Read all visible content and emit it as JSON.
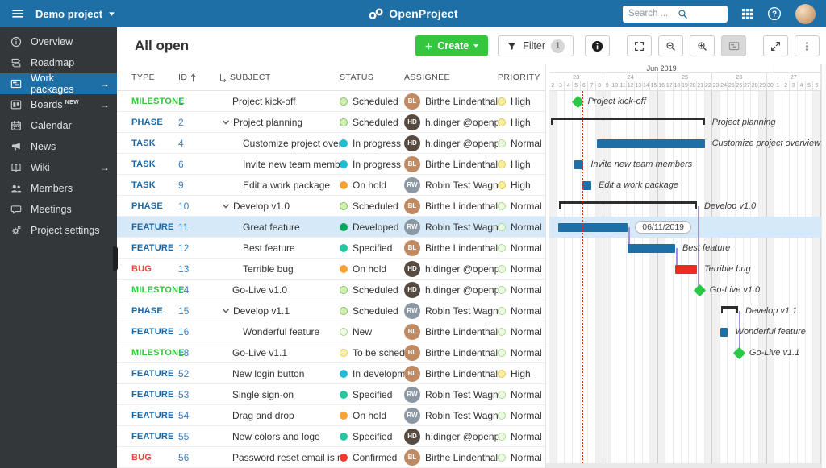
{
  "topbar": {
    "project_name": "Demo project",
    "logo_text": "OpenProject",
    "search_placeholder": "Search ..."
  },
  "sidebar": {
    "items": [
      {
        "icon": "overview-icon",
        "label": "Overview",
        "arrow": false,
        "badge": "",
        "active": false
      },
      {
        "icon": "roadmap-icon",
        "label": "Roadmap",
        "arrow": false,
        "badge": "",
        "active": false
      },
      {
        "icon": "work-packages-icon",
        "label": "Work packages",
        "arrow": true,
        "badge": "",
        "active": true
      },
      {
        "icon": "boards-icon",
        "label": "Boards",
        "arrow": true,
        "badge": "NEW",
        "active": false
      },
      {
        "icon": "calendar-icon",
        "label": "Calendar",
        "arrow": false,
        "badge": "",
        "active": false
      },
      {
        "icon": "news-icon",
        "label": "News",
        "arrow": false,
        "badge": "",
        "active": false
      },
      {
        "icon": "wiki-icon",
        "label": "Wiki",
        "arrow": true,
        "badge": "",
        "active": false
      },
      {
        "icon": "members-icon",
        "label": "Members",
        "arrow": false,
        "badge": "",
        "active": false
      },
      {
        "icon": "meetings-icon",
        "label": "Meetings",
        "arrow": false,
        "badge": "",
        "active": false
      },
      {
        "icon": "settings-icon",
        "label": "Project settings",
        "arrow": false,
        "badge": "",
        "active": false
      }
    ]
  },
  "toolbar": {
    "title": "All open",
    "create_label": "Create",
    "filter_label": "Filter",
    "filter_count": "1"
  },
  "table": {
    "columns": [
      "TYPE",
      "ID",
      "SUBJECT",
      "STATUS",
      "ASSIGNEE",
      "PRIORITY"
    ],
    "sort_column": "ID"
  },
  "people": {
    "bl": {
      "name": "Birthe Lindenthal",
      "initials": "BL",
      "color": "#C08A62"
    },
    "hd": {
      "name": "h.dinger @openproje...",
      "initials": "HD",
      "color": "#574A40"
    },
    "rw": {
      "name": "Robin Test Wagner",
      "initials": "RW",
      "color": "#8C99A5"
    }
  },
  "rows": [
    {
      "type": "MILESTONE",
      "cat": "milestone",
      "id": "1",
      "subject": "Project kick-off",
      "indent": 1,
      "expander": false,
      "status": {
        "label": "Scheduled",
        "dot": "scheduled"
      },
      "assignee": "bl",
      "priority": {
        "label": "High",
        "dot": "high"
      },
      "selected": false,
      "bar": {
        "kind": "diamond",
        "start": 3.7,
        "end": 3.7,
        "label": "Project kick-off",
        "pill": ""
      }
    },
    {
      "type": "PHASE",
      "cat": "phase",
      "id": "2",
      "subject": "Project planning",
      "indent": 0,
      "expander": true,
      "status": {
        "label": "Scheduled",
        "dot": "scheduled"
      },
      "assignee": "hd",
      "priority": {
        "label": "High",
        "dot": "high"
      },
      "selected": false,
      "bar": {
        "kind": "bracket",
        "start": 0.2,
        "end": 20.0,
        "label": "Project planning",
        "pill": ""
      }
    },
    {
      "type": "TASK",
      "cat": "task",
      "id": "4",
      "subject": "Customize project overvie...",
      "indent": 2,
      "expander": false,
      "status": {
        "label": "In progress",
        "dot": "inprogress"
      },
      "assignee": "hd",
      "priority": {
        "label": "Normal",
        "dot": "normal"
      },
      "selected": false,
      "bar": {
        "kind": "bar",
        "start": 6.1,
        "end": 20.0,
        "label": "Customize project overview page",
        "pill": ""
      }
    },
    {
      "type": "TASK",
      "cat": "task",
      "id": "6",
      "subject": "Invite new team members",
      "indent": 2,
      "expander": false,
      "status": {
        "label": "In progress",
        "dot": "inprogress"
      },
      "assignee": "bl",
      "priority": {
        "label": "High",
        "dot": "high"
      },
      "selected": false,
      "bar": {
        "kind": "bar",
        "start": 3.2,
        "end": 4.4,
        "label": "Invite new team members",
        "pill": ""
      }
    },
    {
      "type": "TASK",
      "cat": "task",
      "id": "9",
      "subject": "Edit a work package",
      "indent": 2,
      "expander": false,
      "status": {
        "label": "On hold",
        "dot": "onhold"
      },
      "assignee": "rw",
      "priority": {
        "label": "High",
        "dot": "high"
      },
      "selected": false,
      "bar": {
        "kind": "bar",
        "start": 4.3,
        "end": 5.4,
        "label": "Edit a work package",
        "pill": ""
      }
    },
    {
      "type": "PHASE",
      "cat": "phase",
      "id": "10",
      "subject": "Develop v1.0",
      "indent": 0,
      "expander": true,
      "status": {
        "label": "Scheduled",
        "dot": "scheduled"
      },
      "assignee": "bl",
      "priority": {
        "label": "Normal",
        "dot": "normal"
      },
      "selected": false,
      "bar": {
        "kind": "bracket",
        "start": 1.2,
        "end": 19.0,
        "label": "Develop v1.0",
        "pill": ""
      }
    },
    {
      "type": "FEATURE",
      "cat": "feature",
      "id": "11",
      "subject": "Great feature",
      "indent": 2,
      "expander": false,
      "status": {
        "label": "Developed",
        "dot": "developed"
      },
      "assignee": "rw",
      "priority": {
        "label": "Normal",
        "dot": "normal"
      },
      "selected": true,
      "bar": {
        "kind": "bar",
        "start": 1.1,
        "end": 10.1,
        "label": "",
        "pill": "06/11/2019"
      }
    },
    {
      "type": "FEATURE",
      "cat": "feature",
      "id": "12",
      "subject": "Best feature",
      "indent": 2,
      "expander": false,
      "status": {
        "label": "Specified",
        "dot": "specified"
      },
      "assignee": "bl",
      "priority": {
        "label": "Normal",
        "dot": "normal"
      },
      "selected": false,
      "bar": {
        "kind": "bar",
        "start": 10.1,
        "end": 16.2,
        "label": "Best feature",
        "pill": ""
      }
    },
    {
      "type": "BUG",
      "cat": "bug",
      "id": "13",
      "subject": "Terrible bug",
      "indent": 2,
      "expander": false,
      "status": {
        "label": "On hold",
        "dot": "onhold"
      },
      "assignee": "hd",
      "priority": {
        "label": "Normal",
        "dot": "normal"
      },
      "selected": false,
      "bar": {
        "kind": "bar-red",
        "start": 16.2,
        "end": 19.0,
        "label": "Terrible bug",
        "pill": ""
      }
    },
    {
      "type": "MILESTONE",
      "cat": "milestone",
      "id": "14",
      "subject": "Go-Live v1.0",
      "indent": 1,
      "expander": false,
      "status": {
        "label": "Scheduled",
        "dot": "scheduled"
      },
      "assignee": "hd",
      "priority": {
        "label": "Normal",
        "dot": "normal"
      },
      "selected": false,
      "bar": {
        "kind": "diamond",
        "start": 19.4,
        "end": 19.4,
        "label": "Go-Live v1.0",
        "pill": ""
      }
    },
    {
      "type": "PHASE",
      "cat": "phase",
      "id": "15",
      "subject": "Develop v1.1",
      "indent": 0,
      "expander": true,
      "status": {
        "label": "Scheduled",
        "dot": "scheduled"
      },
      "assignee": "rw",
      "priority": {
        "label": "Normal",
        "dot": "normal"
      },
      "selected": false,
      "bar": {
        "kind": "bracket",
        "start": 22.1,
        "end": 24.3,
        "label": "Develop v1.1",
        "pill": ""
      }
    },
    {
      "type": "FEATURE",
      "cat": "feature",
      "id": "16",
      "subject": "Wonderful feature",
      "indent": 2,
      "expander": false,
      "status": {
        "label": "New",
        "dot": "new"
      },
      "assignee": "bl",
      "priority": {
        "label": "Normal",
        "dot": "normal"
      },
      "selected": false,
      "bar": {
        "kind": "bar",
        "start": 22.0,
        "end": 23.0,
        "label": "Wonderful feature",
        "pill": ""
      }
    },
    {
      "type": "MILESTONE",
      "cat": "milestone",
      "id": "18",
      "subject": "Go-Live v1.1",
      "indent": 1,
      "expander": false,
      "status": {
        "label": "To be scheduled",
        "dot": "tobescheduled"
      },
      "assignee": "bl",
      "priority": {
        "label": "Normal",
        "dot": "normal"
      },
      "selected": false,
      "bar": {
        "kind": "diamond",
        "start": 24.5,
        "end": 24.5,
        "label": "Go-Live v1.1",
        "pill": ""
      }
    },
    {
      "type": "FEATURE",
      "cat": "feature",
      "id": "52",
      "subject": "New login button",
      "indent": 1,
      "expander": false,
      "status": {
        "label": "In development",
        "dot": "indevelopment"
      },
      "assignee": "bl",
      "priority": {
        "label": "High",
        "dot": "high"
      },
      "selected": false,
      "bar": null
    },
    {
      "type": "FEATURE",
      "cat": "feature",
      "id": "53",
      "subject": "Single sign-on",
      "indent": 1,
      "expander": false,
      "status": {
        "label": "Specified",
        "dot": "specified"
      },
      "assignee": "rw",
      "priority": {
        "label": "Normal",
        "dot": "normal"
      },
      "selected": false,
      "bar": null
    },
    {
      "type": "FEATURE",
      "cat": "feature",
      "id": "54",
      "subject": "Drag and drop",
      "indent": 1,
      "expander": false,
      "status": {
        "label": "On hold",
        "dot": "onhold"
      },
      "assignee": "rw",
      "priority": {
        "label": "Normal",
        "dot": "normal"
      },
      "selected": false,
      "bar": null
    },
    {
      "type": "FEATURE",
      "cat": "feature",
      "id": "55",
      "subject": "New colors and logo",
      "indent": 1,
      "expander": false,
      "status": {
        "label": "Specified",
        "dot": "specified"
      },
      "assignee": "hd",
      "priority": {
        "label": "Normal",
        "dot": "normal"
      },
      "selected": false,
      "bar": null
    },
    {
      "type": "BUG",
      "cat": "bug",
      "id": "56",
      "subject": "Password reset email is not se...",
      "indent": 1,
      "expander": false,
      "status": {
        "label": "Confirmed",
        "dot": "confirmed"
      },
      "assignee": "bl",
      "priority": {
        "label": "Normal",
        "dot": "normal"
      },
      "selected": false,
      "bar": null
    }
  ],
  "gantt": {
    "month_label": "Jun 2019",
    "month_span_days": 29,
    "weeks": [
      {
        "label": "23",
        "days": [
          "2",
          "3",
          "4",
          "5",
          "6",
          "7",
          "8"
        ]
      },
      {
        "label": "24",
        "days": [
          "9",
          "10",
          "11",
          "12",
          "13",
          "14",
          "15"
        ]
      },
      {
        "label": "25",
        "days": [
          "16",
          "17",
          "18",
          "19",
          "20",
          "21",
          "22"
        ]
      },
      {
        "label": "26",
        "days": [
          "23",
          "24",
          "25",
          "26",
          "27",
          "28",
          "29"
        ]
      },
      {
        "label": "27",
        "days": [
          "30",
          "1",
          "2",
          "3",
          "4",
          "5",
          "6"
        ]
      }
    ],
    "weekend_indices": [
      0,
      6,
      7,
      13,
      14,
      20,
      21,
      27,
      28,
      34
    ],
    "today_index": 4.2,
    "relations": [
      {
        "x": 10.2,
        "from_row": 6,
        "to_row": 7
      },
      {
        "x": 16.35,
        "from_row": 7,
        "to_row": 8
      },
      {
        "x": 19.15,
        "from_row": 5,
        "to_row": 9
      },
      {
        "x": 24.45,
        "from_row": 10,
        "to_row": 12
      }
    ]
  },
  "colors": {
    "topbar": "#1D6FA5",
    "sidebar": "#333739",
    "accent_green": "#35C53F",
    "selected_row": "#D6E9F9",
    "gantt_bar": "#1D6FA5",
    "gantt_bar_red": "#EE2B1F",
    "gantt_diamond": "#2BC848",
    "gantt_relation": "#A38FE3",
    "gantt_today": "#E02820",
    "type": {
      "milestone": "#35C53F",
      "phase": "#1A67A3",
      "task": "#1A67A3",
      "feature": "#1A67A3",
      "bug": "#E8453C"
    },
    "status_dots": {
      "scheduled": {
        "bg": "#D3F1B4",
        "bd": "#82C25E"
      },
      "inprogress": {
        "bg": "#1EBDD3",
        "bd": "#1EBDD3"
      },
      "onhold": {
        "bg": "#F7A233",
        "bd": "#F7A233"
      },
      "developed": {
        "bg": "#09A75E",
        "bd": "#09A75E"
      },
      "specified": {
        "bg": "#27C6A3",
        "bd": "#27C6A3"
      },
      "new": {
        "bg": "#F0FAE9",
        "bd": "#A0D87E"
      },
      "tobescheduled": {
        "bg": "#FAF2AC",
        "bd": "#E0D058"
      },
      "indevelopment": {
        "bg": "#1EBDD3",
        "bd": "#1EBDD3"
      },
      "confirmed": {
        "bg": "#F2392E",
        "bd": "#F2392E"
      },
      "normal": {
        "bg": "#EDF9E5",
        "bd": "#ABDC8D"
      },
      "high": {
        "bg": "#F8EEA0",
        "bd": "#DCCC55"
      }
    }
  }
}
